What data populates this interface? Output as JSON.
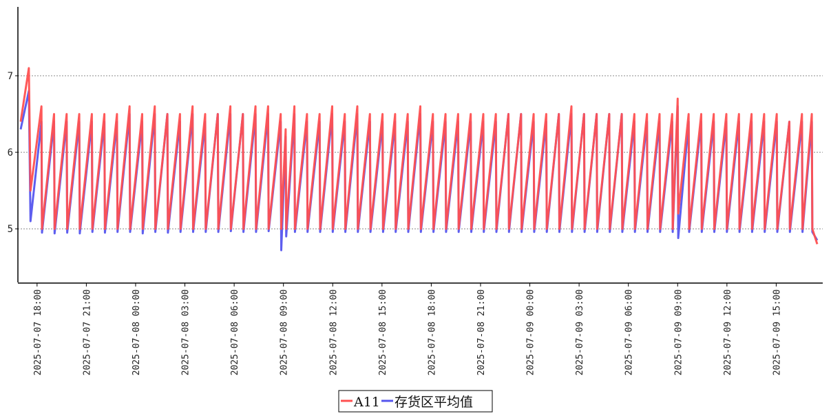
{
  "chart_data": {
    "type": "line",
    "title": "",
    "xlabel": "",
    "ylabel": "",
    "ylim": [
      4.3,
      7.9
    ],
    "y_ticks": [
      5,
      6,
      7
    ],
    "y_tick_labels": [
      "5",
      "6",
      "7"
    ],
    "grid": "horizontal dotted",
    "legend_position": "bottom-center",
    "x_range": [
      "2025-07-07 16:50",
      "2025-07-09 17:50"
    ],
    "x_tick_labels": [
      "2025-07-07  18:00",
      "2025-07-07  21:00",
      "2025-07-08  00:00",
      "2025-07-08  03:00",
      "2025-07-08  06:00",
      "2025-07-08  09:00",
      "2025-07-08  12:00",
      "2025-07-08  15:00",
      "2025-07-08  18:00",
      "2025-07-08  21:00",
      "2025-07-09  00:00",
      "2025-07-09  03:00",
      "2025-07-09  06:00",
      "2025-07-09  09:00",
      "2025-07-09  12:00",
      "2025-07-09  15:00"
    ],
    "x_ticks": [
      "2025-07-07 18:00",
      "2025-07-07 21:00",
      "2025-07-08 00:00",
      "2025-07-08 03:00",
      "2025-07-08 06:00",
      "2025-07-08 09:00",
      "2025-07-08 12:00",
      "2025-07-08 15:00",
      "2025-07-08 18:00",
      "2025-07-08 21:00",
      "2025-07-09 00:00",
      "2025-07-09 03:00",
      "2025-07-09 06:00",
      "2025-07-09 09:00",
      "2025-07-09 12:00",
      "2025-07-09 15:00"
    ],
    "series": [
      {
        "name": "A11",
        "color": "#ff5050",
        "x": [
          "2025-07-07 17:00",
          "2025-07-07 17:30",
          "2025-07-07 17:36",
          "2025-07-07 18:16",
          "2025-07-07 18:18",
          "2025-07-07 19:02",
          "2025-07-07 19:04",
          "2025-07-07 19:48",
          "2025-07-07 19:50",
          "2025-07-07 20:34",
          "2025-07-07 20:36",
          "2025-07-07 21:20",
          "2025-07-07 21:22",
          "2025-07-07 22:06",
          "2025-07-07 22:08",
          "2025-07-07 22:52",
          "2025-07-07 22:54",
          "2025-07-07 23:38",
          "2025-07-07 23:40",
          "2025-07-08 00:24",
          "2025-07-08 00:26",
          "2025-07-08 01:10",
          "2025-07-08 01:12",
          "2025-07-08 01:56",
          "2025-07-08 01:58",
          "2025-07-08 02:42",
          "2025-07-08 02:44",
          "2025-07-08 03:28",
          "2025-07-08 03:30",
          "2025-07-08 04:14",
          "2025-07-08 04:16",
          "2025-07-08 05:00",
          "2025-07-08 05:02",
          "2025-07-08 05:46",
          "2025-07-08 05:48",
          "2025-07-08 06:32",
          "2025-07-08 06:34",
          "2025-07-08 07:18",
          "2025-07-08 07:20",
          "2025-07-08 08:04",
          "2025-07-08 08:06",
          "2025-07-08 08:50",
          "2025-07-08 08:52",
          "2025-07-08 09:08",
          "2025-07-08 09:10",
          "2025-07-08 09:40",
          "2025-07-08 09:42",
          "2025-07-08 10:26",
          "2025-07-08 10:28",
          "2025-07-08 11:12",
          "2025-07-08 11:14",
          "2025-07-08 11:58",
          "2025-07-08 12:00",
          "2025-07-08 12:44",
          "2025-07-08 12:46",
          "2025-07-08 13:30",
          "2025-07-08 13:32",
          "2025-07-08 14:16",
          "2025-07-08 14:18",
          "2025-07-08 15:02",
          "2025-07-08 15:04",
          "2025-07-08 15:48",
          "2025-07-08 15:50",
          "2025-07-08 16:34",
          "2025-07-08 16:36",
          "2025-07-08 17:20",
          "2025-07-08 17:22",
          "2025-07-08 18:06",
          "2025-07-08 18:08",
          "2025-07-08 18:52",
          "2025-07-08 18:54",
          "2025-07-08 19:38",
          "2025-07-08 19:40",
          "2025-07-08 20:24",
          "2025-07-08 20:26",
          "2025-07-08 21:10",
          "2025-07-08 21:12",
          "2025-07-08 21:56",
          "2025-07-08 21:58",
          "2025-07-08 22:42",
          "2025-07-08 22:44",
          "2025-07-08 23:28",
          "2025-07-08 23:30",
          "2025-07-09 00:14",
          "2025-07-09 00:16",
          "2025-07-09 01:00",
          "2025-07-09 01:02",
          "2025-07-09 01:46",
          "2025-07-09 01:48",
          "2025-07-09 02:32",
          "2025-07-09 02:34",
          "2025-07-09 03:18",
          "2025-07-09 03:20",
          "2025-07-09 04:04",
          "2025-07-09 04:06",
          "2025-07-09 04:50",
          "2025-07-09 04:52",
          "2025-07-09 05:36",
          "2025-07-09 05:38",
          "2025-07-09 06:22",
          "2025-07-09 06:24",
          "2025-07-09 07:08",
          "2025-07-09 07:10",
          "2025-07-09 07:54",
          "2025-07-09 07:56",
          "2025-07-09 08:40",
          "2025-07-09 08:42",
          "2025-07-09 09:00",
          "2025-07-09 09:02",
          "2025-07-09 09:40",
          "2025-07-09 09:42",
          "2025-07-09 10:26",
          "2025-07-09 10:28",
          "2025-07-09 11:12",
          "2025-07-09 11:14",
          "2025-07-09 11:58",
          "2025-07-09 12:00",
          "2025-07-09 12:44",
          "2025-07-09 12:46",
          "2025-07-09 13:30",
          "2025-07-09 13:32",
          "2025-07-09 14:16",
          "2025-07-09 14:18",
          "2025-07-09 15:02",
          "2025-07-09 15:04",
          "2025-07-09 15:48",
          "2025-07-09 15:50",
          "2025-07-09 16:34",
          "2025-07-09 16:36",
          "2025-07-09 17:10",
          "2025-07-09 17:12",
          "2025-07-09 17:30"
        ],
        "values": [
          6.4,
          7.1,
          5.5,
          6.6,
          5.0,
          6.5,
          5.0,
          6.5,
          5.0,
          6.5,
          5.0,
          6.5,
          5.0,
          6.5,
          5.0,
          6.5,
          5.0,
          6.6,
          5.0,
          6.5,
          5.0,
          6.6,
          5.0,
          6.5,
          5.0,
          6.5,
          5.0,
          6.6,
          5.0,
          6.5,
          5.0,
          6.5,
          5.0,
          6.6,
          5.0,
          6.5,
          5.0,
          6.6,
          5.0,
          6.6,
          5.0,
          6.5,
          5.0,
          6.3,
          5.0,
          6.6,
          5.0,
          6.5,
          5.0,
          6.5,
          5.0,
          6.6,
          5.0,
          6.5,
          5.0,
          6.6,
          5.0,
          6.5,
          5.0,
          6.5,
          5.0,
          6.5,
          5.0,
          6.5,
          5.0,
          6.6,
          5.0,
          6.5,
          5.0,
          6.5,
          5.0,
          6.5,
          5.0,
          6.5,
          5.0,
          6.5,
          5.0,
          6.5,
          5.0,
          6.5,
          5.0,
          6.5,
          5.0,
          6.5,
          5.0,
          6.5,
          5.0,
          6.5,
          5.0,
          6.6,
          5.0,
          6.5,
          5.0,
          6.5,
          5.0,
          6.5,
          5.0,
          6.5,
          5.0,
          6.5,
          5.0,
          6.5,
          5.0,
          6.5,
          5.0,
          6.5,
          5.0,
          6.7,
          5.2,
          6.5,
          5.0,
          6.5,
          5.0,
          6.5,
          5.0,
          6.5,
          5.0,
          6.5,
          5.0,
          6.5,
          5.0,
          6.5,
          5.0,
          6.5,
          5.0,
          6.4,
          5.0,
          6.5,
          5.0,
          6.5,
          5.0,
          4.8
        ]
      },
      {
        "name": "存货区平均值",
        "color": "#5555ee",
        "x": [
          "2025-07-07 17:00",
          "2025-07-07 17:30",
          "2025-07-07 17:36",
          "2025-07-07 18:16",
          "2025-07-07 18:18",
          "2025-07-07 19:02",
          "2025-07-07 19:04",
          "2025-07-07 19:48",
          "2025-07-07 19:50",
          "2025-07-07 20:34",
          "2025-07-07 20:36",
          "2025-07-07 21:20",
          "2025-07-07 21:22",
          "2025-07-07 22:06",
          "2025-07-07 22:08",
          "2025-07-07 22:52",
          "2025-07-07 22:54",
          "2025-07-07 23:38",
          "2025-07-07 23:40",
          "2025-07-08 00:24",
          "2025-07-08 00:26",
          "2025-07-08 01:10",
          "2025-07-08 01:12",
          "2025-07-08 01:56",
          "2025-07-08 01:58",
          "2025-07-08 02:42",
          "2025-07-08 02:44",
          "2025-07-08 03:28",
          "2025-07-08 03:30",
          "2025-07-08 04:14",
          "2025-07-08 04:16",
          "2025-07-08 05:00",
          "2025-07-08 05:02",
          "2025-07-08 05:46",
          "2025-07-08 05:48",
          "2025-07-08 06:32",
          "2025-07-08 06:34",
          "2025-07-08 07:18",
          "2025-07-08 07:20",
          "2025-07-08 08:04",
          "2025-07-08 08:06",
          "2025-07-08 08:50",
          "2025-07-08 08:52",
          "2025-07-08 09:08",
          "2025-07-08 09:10",
          "2025-07-08 09:40",
          "2025-07-08 09:42",
          "2025-07-08 10:26",
          "2025-07-08 10:28",
          "2025-07-08 11:12",
          "2025-07-08 11:14",
          "2025-07-08 11:58",
          "2025-07-08 12:00",
          "2025-07-08 12:44",
          "2025-07-08 12:46",
          "2025-07-08 13:30",
          "2025-07-08 13:32",
          "2025-07-08 14:16",
          "2025-07-08 14:18",
          "2025-07-08 15:02",
          "2025-07-08 15:04",
          "2025-07-08 15:48",
          "2025-07-08 15:50",
          "2025-07-08 16:34",
          "2025-07-08 16:36",
          "2025-07-08 17:20",
          "2025-07-08 17:22",
          "2025-07-08 18:06",
          "2025-07-08 18:08",
          "2025-07-08 18:52",
          "2025-07-08 18:54",
          "2025-07-08 19:38",
          "2025-07-08 19:40",
          "2025-07-08 20:24",
          "2025-07-08 20:26",
          "2025-07-08 21:10",
          "2025-07-08 21:12",
          "2025-07-08 21:56",
          "2025-07-08 21:58",
          "2025-07-08 22:42",
          "2025-07-08 22:44",
          "2025-07-08 23:28",
          "2025-07-08 23:30",
          "2025-07-09 00:14",
          "2025-07-09 00:16",
          "2025-07-09 01:00",
          "2025-07-09 01:02",
          "2025-07-09 01:46",
          "2025-07-09 01:48",
          "2025-07-09 02:32",
          "2025-07-09 02:34",
          "2025-07-09 03:18",
          "2025-07-09 03:20",
          "2025-07-09 04:04",
          "2025-07-09 04:06",
          "2025-07-09 04:50",
          "2025-07-09 04:52",
          "2025-07-09 05:36",
          "2025-07-09 05:38",
          "2025-07-09 06:22",
          "2025-07-09 06:24",
          "2025-07-09 07:08",
          "2025-07-09 07:10",
          "2025-07-09 07:54",
          "2025-07-09 07:56",
          "2025-07-09 08:40",
          "2025-07-09 08:42",
          "2025-07-09 09:00",
          "2025-07-09 09:02",
          "2025-07-09 09:40",
          "2025-07-09 09:42",
          "2025-07-09 10:26",
          "2025-07-09 10:28",
          "2025-07-09 11:12",
          "2025-07-09 11:14",
          "2025-07-09 11:58",
          "2025-07-09 12:00",
          "2025-07-09 12:44",
          "2025-07-09 12:46",
          "2025-07-09 13:30",
          "2025-07-09 13:32",
          "2025-07-09 14:16",
          "2025-07-09 14:18",
          "2025-07-09 15:02",
          "2025-07-09 15:04",
          "2025-07-09 15:48",
          "2025-07-09 15:50",
          "2025-07-09 16:34",
          "2025-07-09 16:36",
          "2025-07-09 17:10",
          "2025-07-09 17:12",
          "2025-07-09 17:30"
        ],
        "values": [
          6.3,
          6.8,
          5.1,
          6.4,
          4.95,
          6.4,
          4.94,
          6.4,
          4.95,
          6.4,
          4.94,
          6.4,
          4.96,
          6.4,
          4.95,
          6.4,
          4.96,
          6.5,
          4.96,
          6.4,
          4.94,
          6.5,
          4.96,
          6.5,
          4.95,
          6.4,
          4.96,
          6.5,
          4.96,
          6.4,
          4.96,
          6.5,
          4.96,
          6.5,
          4.97,
          6.5,
          4.96,
          6.5,
          4.96,
          6.5,
          4.97,
          6.4,
          4.72,
          6.2,
          4.9,
          6.5,
          4.96,
          6.4,
          4.96,
          6.4,
          4.96,
          6.5,
          4.96,
          6.4,
          4.96,
          6.5,
          4.96,
          6.4,
          4.96,
          6.4,
          4.96,
          6.4,
          4.96,
          6.4,
          4.96,
          6.5,
          4.96,
          6.4,
          4.96,
          6.4,
          4.96,
          6.4,
          4.96,
          6.4,
          4.96,
          6.4,
          4.96,
          6.4,
          4.96,
          6.5,
          4.96,
          6.5,
          4.96,
          6.4,
          4.96,
          6.4,
          4.96,
          6.5,
          4.96,
          6.5,
          4.96,
          6.5,
          4.96,
          6.5,
          4.96,
          6.5,
          4.96,
          6.5,
          4.96,
          6.4,
          4.96,
          6.4,
          4.96,
          6.4,
          4.96,
          6.4,
          4.96,
          6.6,
          4.88,
          6.4,
          4.96,
          6.4,
          4.96,
          6.4,
          4.96,
          6.4,
          4.96,
          6.4,
          4.96,
          6.4,
          4.96,
          6.4,
          4.96,
          6.4,
          4.96,
          6.4,
          4.96,
          6.4,
          4.96,
          6.4,
          4.96,
          4.85
        ]
      }
    ]
  }
}
